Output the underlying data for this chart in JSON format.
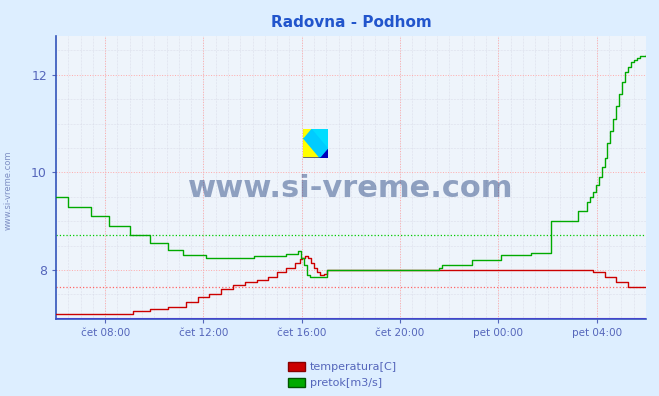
{
  "title": "Radovna - Podhom",
  "title_color": "#2255cc",
  "bg_color": "#ddeeff",
  "plot_bg_color": "#eef4fb",
  "grid_color_major": "#ffaaaa",
  "grid_color_minor": "#ccccdd",
  "ylim": [
    7.0,
    12.8
  ],
  "yticks": [
    8,
    10,
    12
  ],
  "tick_color": "#5566bb",
  "xtick_labels": [
    "čet 08:00",
    "čet 12:00",
    "čet 16:00",
    "čet 20:00",
    "pet 00:00",
    "pet 04:00"
  ],
  "xtick_positions": [
    0.0833,
    0.25,
    0.4167,
    0.5833,
    0.75,
    0.9167
  ],
  "watermark_text": "www.si-vreme.com",
  "watermark_color": "#1a3a7a",
  "watermark_alpha": 0.45,
  "legend_labels": [
    "temperatura[C]",
    "pretok[m3/s]"
  ],
  "legend_colors": [
    "#cc0000",
    "#00aa00"
  ],
  "axis_color": "#3355bb",
  "hline_red_y": 7.65,
  "hline_green_y": 8.72,
  "hline_red_color": "#ff6666",
  "hline_green_color": "#00cc00",
  "temp_color": "#cc0000",
  "flow_color": "#00aa00",
  "temp_x": [
    0.0,
    0.1,
    0.13,
    0.16,
    0.19,
    0.22,
    0.24,
    0.26,
    0.28,
    0.3,
    0.32,
    0.34,
    0.36,
    0.375,
    0.39,
    0.405,
    0.413,
    0.417,
    0.422,
    0.427,
    0.432,
    0.437,
    0.443,
    0.448,
    0.455,
    0.46,
    0.47,
    0.49,
    0.52,
    0.55,
    0.58,
    0.61,
    0.65,
    0.7,
    0.75,
    0.8,
    0.85,
    0.89,
    0.91,
    0.93,
    0.95,
    0.97,
    1.0
  ],
  "temp_y": [
    7.1,
    7.1,
    7.15,
    7.2,
    7.25,
    7.35,
    7.45,
    7.5,
    7.6,
    7.7,
    7.75,
    7.8,
    7.85,
    7.95,
    8.05,
    8.15,
    8.22,
    8.25,
    8.28,
    8.25,
    8.15,
    8.05,
    7.95,
    7.9,
    7.92,
    8.0,
    8.0,
    8.0,
    8.0,
    8.0,
    8.0,
    8.0,
    8.0,
    8.0,
    8.0,
    8.0,
    8.0,
    8.0,
    7.95,
    7.85,
    7.75,
    7.65,
    7.65
  ],
  "flow_x": [
    0.0,
    0.015,
    0.02,
    0.055,
    0.06,
    0.085,
    0.09,
    0.12,
    0.125,
    0.155,
    0.16,
    0.185,
    0.19,
    0.21,
    0.215,
    0.25,
    0.255,
    0.33,
    0.335,
    0.385,
    0.39,
    0.405,
    0.41,
    0.415,
    0.42,
    0.425,
    0.43,
    0.435,
    0.44,
    0.45,
    0.46,
    0.52,
    0.525,
    0.585,
    0.59,
    0.65,
    0.655,
    0.7,
    0.705,
    0.75,
    0.755,
    0.8,
    0.805,
    0.83,
    0.835,
    0.84,
    0.88,
    0.885,
    0.895,
    0.9,
    0.905,
    0.91,
    0.915,
    0.92,
    0.925,
    0.93,
    0.935,
    0.94,
    0.945,
    0.95,
    0.955,
    0.96,
    0.965,
    0.97,
    0.975,
    0.98,
    0.985,
    0.99,
    1.0
  ],
  "flow_y": [
    9.5,
    9.5,
    9.3,
    9.3,
    9.1,
    9.1,
    8.9,
    8.9,
    8.72,
    8.72,
    8.55,
    8.55,
    8.4,
    8.4,
    8.3,
    8.3,
    8.25,
    8.25,
    8.28,
    8.28,
    8.32,
    8.32,
    8.38,
    8.25,
    8.1,
    7.9,
    7.85,
    7.85,
    7.85,
    7.85,
    8.0,
    8.0,
    8.0,
    8.0,
    8.0,
    8.05,
    8.1,
    8.1,
    8.2,
    8.2,
    8.3,
    8.3,
    8.35,
    8.35,
    8.35,
    9.0,
    9.0,
    9.2,
    9.2,
    9.4,
    9.5,
    9.6,
    9.75,
    9.9,
    10.1,
    10.3,
    10.6,
    10.85,
    11.1,
    11.35,
    11.6,
    11.85,
    12.05,
    12.15,
    12.25,
    12.3,
    12.35,
    12.38,
    12.4
  ]
}
